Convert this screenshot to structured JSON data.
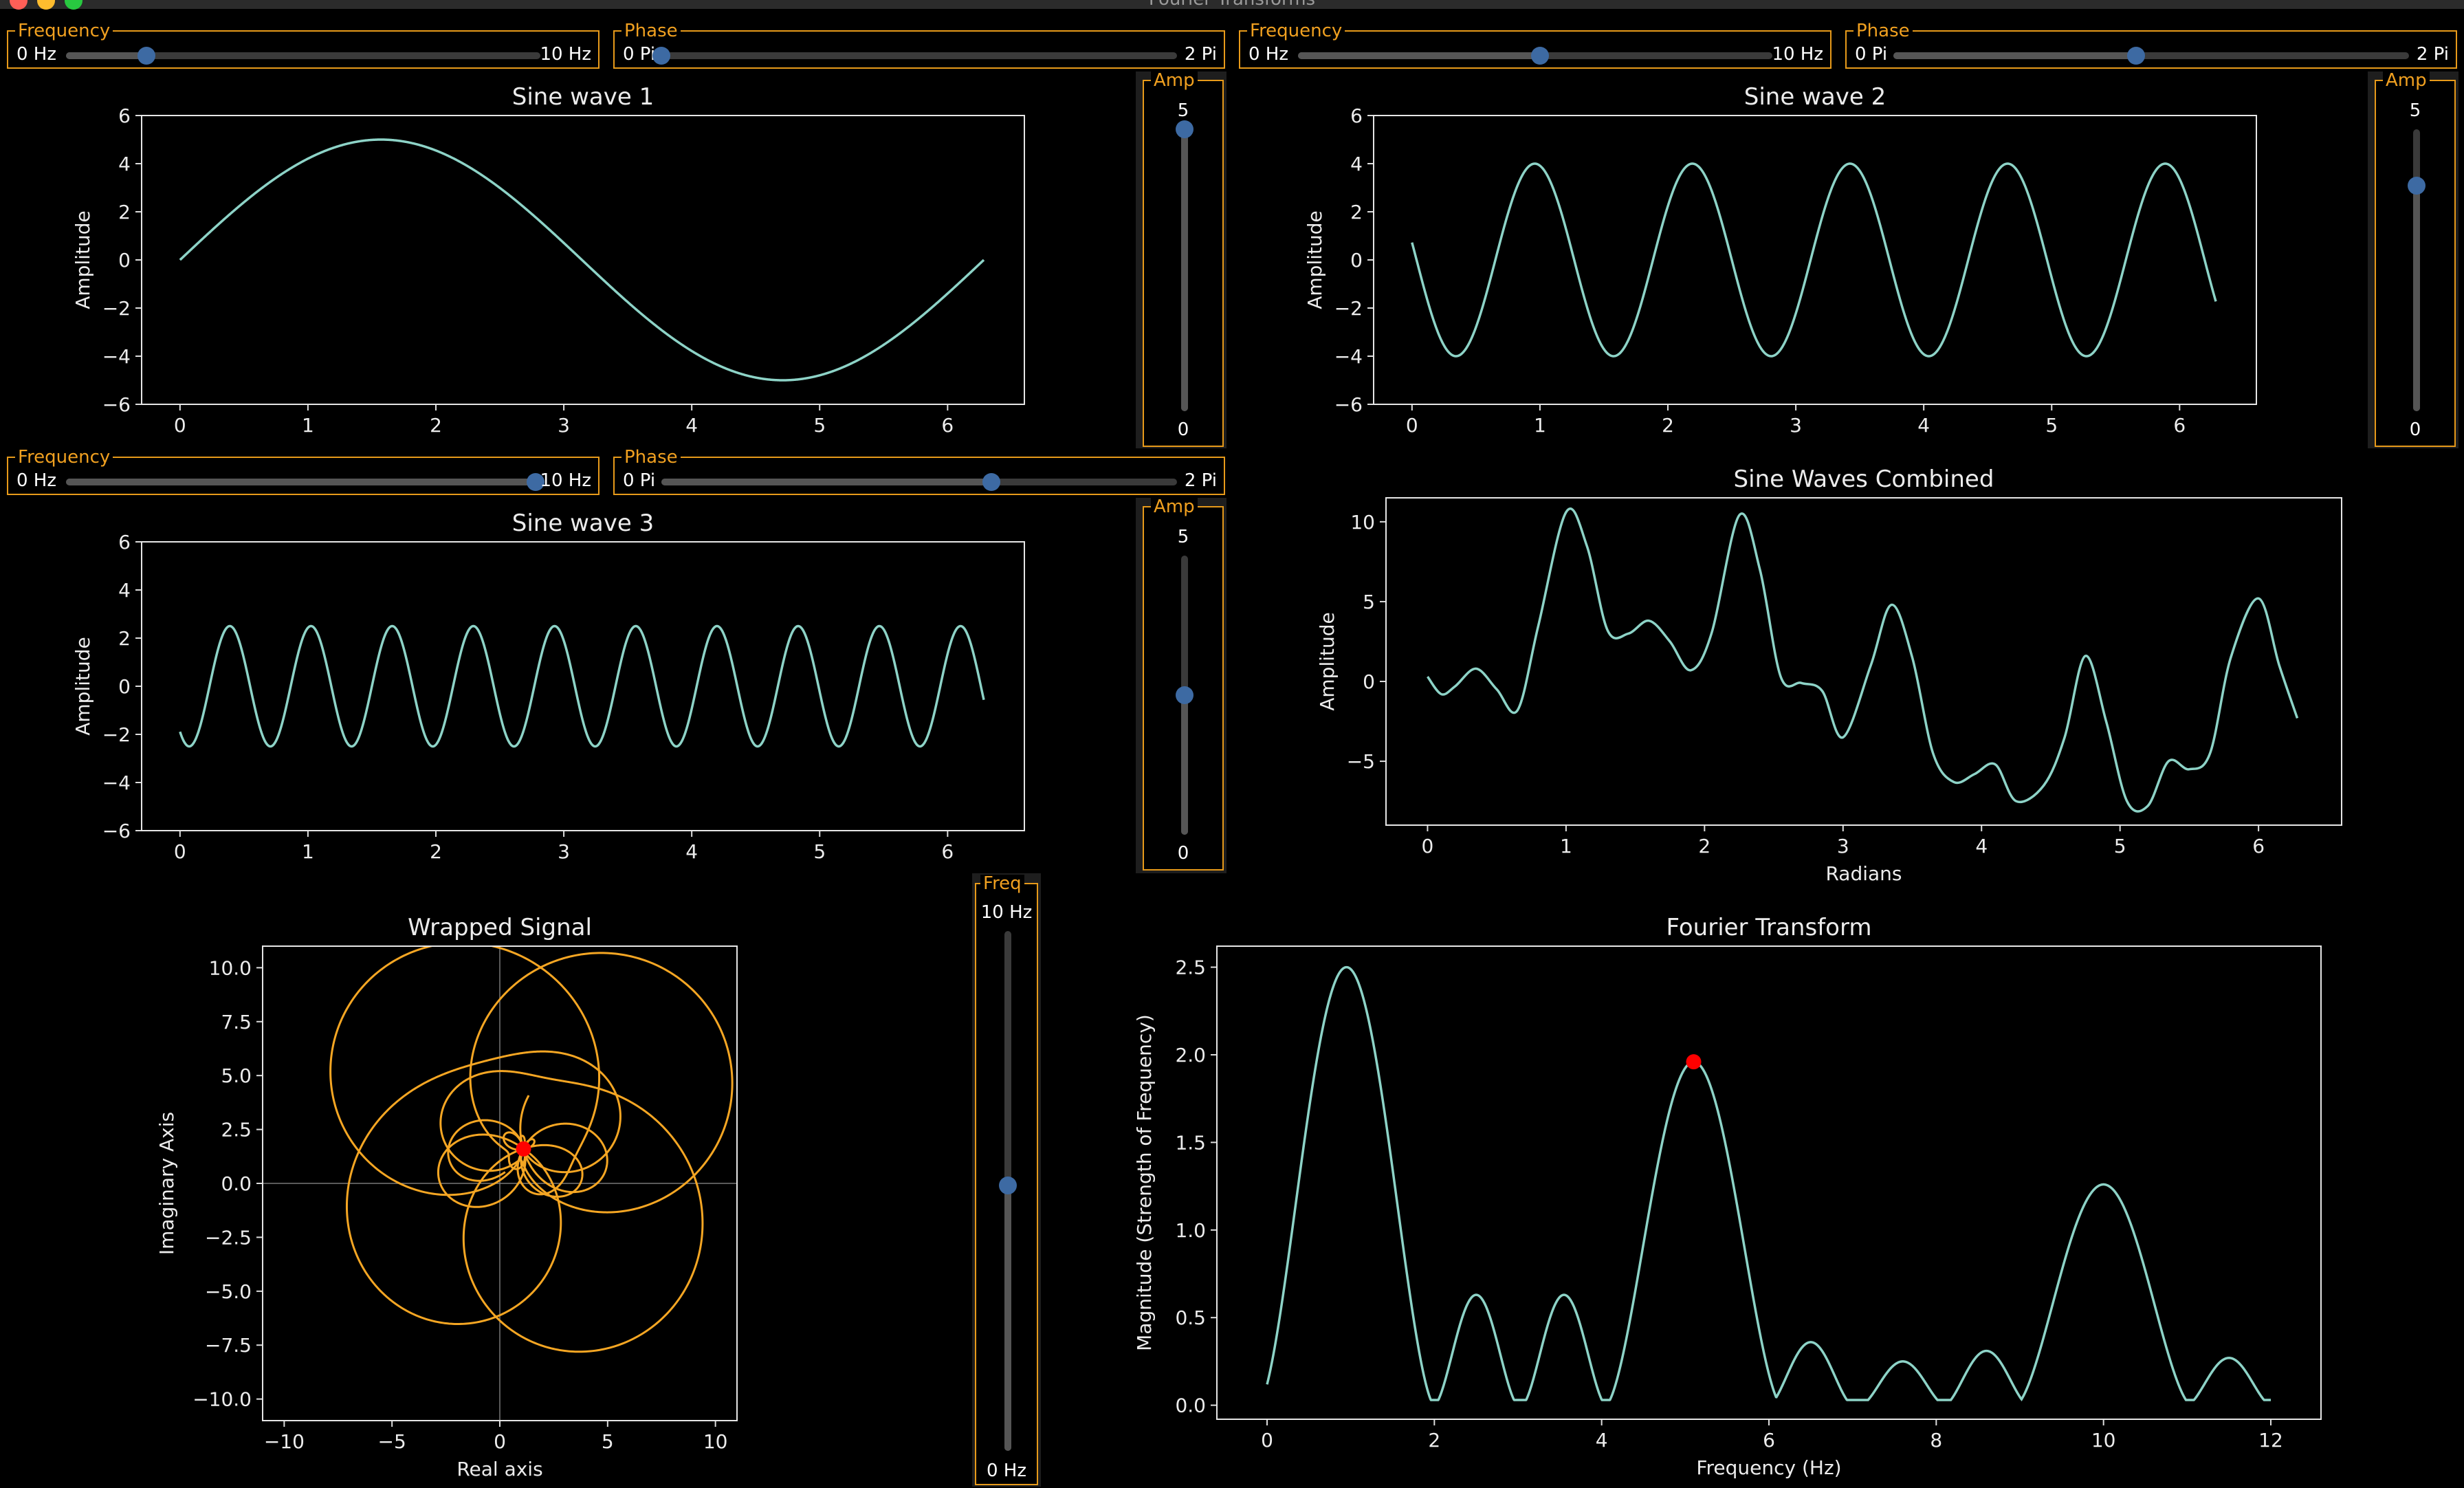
{
  "window": {
    "title": "Fourier Transforms",
    "accent": "#e79a1a",
    "knob_color": "#3d6aa3"
  },
  "controls": {
    "wave1": {
      "freq": {
        "label": "Frequency",
        "min_label": "0 Hz",
        "max_label": "10 Hz",
        "value": 0.17
      },
      "phase": {
        "label": "Phase",
        "min_label": "0 Pi",
        "max_label": "2 Pi",
        "value": 0.0
      },
      "amp": {
        "label": "Amp",
        "max_label": "5",
        "min_label": "0",
        "value": 1.0
      }
    },
    "wave2": {
      "freq": {
        "label": "Frequency",
        "min_label": "0 Hz",
        "max_label": "10 Hz",
        "value": 0.51
      },
      "phase": {
        "label": "Phase",
        "min_label": "0 Pi",
        "max_label": "2 Pi",
        "value": 0.47
      },
      "amp": {
        "label": "Amp",
        "max_label": "5",
        "min_label": "0",
        "value": 0.8
      }
    },
    "wave3": {
      "freq": {
        "label": "Frequency",
        "min_label": "0 Hz",
        "max_label": "10 Hz",
        "value": 0.99
      },
      "phase": {
        "label": "Phase",
        "min_label": "0 Pi",
        "max_label": "2 Pi",
        "value": 0.64
      },
      "amp": {
        "label": "Amp",
        "max_label": "5",
        "min_label": "0",
        "value": 0.5
      }
    },
    "wrap": {
      "label": "Freq",
      "max_label": "10 Hz",
      "min_label": "0 Hz",
      "value": 0.51
    }
  },
  "chart_data": [
    {
      "id": "sine1",
      "type": "line",
      "title": "Sine wave 1",
      "xlabel": "",
      "ylabel": "Amplitude",
      "xlim": [
        -0.3,
        6.6
      ],
      "ylim": [
        -6,
        6
      ],
      "xticks": [
        "0",
        "1",
        "2",
        "3",
        "4",
        "5",
        "6"
      ],
      "yticks": [
        "−6",
        "−4",
        "−2",
        "0",
        "2",
        "4",
        "6"
      ],
      "series": [
        {
          "color": "#8dd3c7",
          "amplitude": 5,
          "frequency": 1,
          "phase": 0,
          "x_range": [
            0,
            6.283
          ]
        }
      ]
    },
    {
      "id": "sine2",
      "type": "line",
      "title": "Sine wave 2",
      "xlabel": "",
      "ylabel": "Amplitude",
      "xlim": [
        -0.3,
        6.6
      ],
      "ylim": [
        -6,
        6
      ],
      "xticks": [
        "0",
        "1",
        "2",
        "3",
        "4",
        "5",
        "6"
      ],
      "yticks": [
        "−6",
        "−4",
        "−2",
        "0",
        "2",
        "4",
        "6"
      ],
      "series": [
        {
          "color": "#8dd3c7",
          "amplitude": 4,
          "frequency": 5.1,
          "phase": 2.96,
          "x_range": [
            0,
            6.283
          ]
        }
      ]
    },
    {
      "id": "sine3",
      "type": "line",
      "title": "Sine wave 3",
      "xlabel": "",
      "ylabel": "Amplitude",
      "xlim": [
        -0.3,
        6.6
      ],
      "ylim": [
        -6,
        6
      ],
      "xticks": [
        "0",
        "1",
        "2",
        "3",
        "4",
        "5",
        "6"
      ],
      "yticks": [
        "−6",
        "−4",
        "−2",
        "0",
        "2",
        "4",
        "6"
      ],
      "series": [
        {
          "color": "#8dd3c7",
          "amplitude": 2.5,
          "frequency": 9.9,
          "phase": 4.0,
          "x_range": [
            0,
            6.283
          ]
        }
      ]
    },
    {
      "id": "combined",
      "type": "line",
      "title": "Sine Waves Combined",
      "xlabel": "Radians",
      "ylabel": "Amplitude",
      "xlim": [
        -0.3,
        6.6
      ],
      "ylim": [
        -9,
        11.5
      ],
      "xticks": [
        "0",
        "1",
        "2",
        "3",
        "4",
        "5",
        "6"
      ],
      "yticks": [
        "−5",
        "0",
        "5",
        "10"
      ],
      "series": [
        {
          "color": "#8dd3c7",
          "x": [
            0,
            0.1,
            0.2,
            0.35,
            0.5,
            0.65,
            0.8,
            1.0,
            1.15,
            1.3,
            1.45,
            1.6,
            1.75,
            1.9,
            2.05,
            2.25,
            2.4,
            2.55,
            2.7,
            2.85,
            3.0,
            3.2,
            3.35,
            3.5,
            3.65,
            3.8,
            3.95,
            4.1,
            4.25,
            4.45,
            4.6,
            4.75,
            4.9,
            5.05,
            5.2,
            5.35,
            5.5,
            5.65,
            5.8,
            6.0,
            6.15,
            6.28
          ],
          "y": [
            0.3,
            -0.8,
            -0.3,
            0.8,
            -0.5,
            -1.8,
            3.5,
            10.6,
            8.5,
            3.2,
            3.0,
            3.8,
            2.5,
            0.7,
            3.0,
            10.4,
            7.0,
            0.3,
            -0.1,
            -0.6,
            -3.5,
            1.0,
            4.8,
            1.5,
            -4.5,
            -6.3,
            -5.8,
            -5.2,
            -7.5,
            -6.5,
            -3.5,
            1.6,
            -2.5,
            -7.5,
            -7.8,
            -5.0,
            -5.5,
            -4.5,
            1.5,
            5.2,
            1.0,
            -2.3
          ]
        }
      ]
    },
    {
      "id": "wrapped",
      "type": "line",
      "title": "Wrapped Signal",
      "xlabel": "Real axis",
      "ylabel": "Imaginary Axis",
      "xlim": [
        -11,
        11
      ],
      "ylim": [
        -11,
        11
      ],
      "xticks": [
        "−10",
        "−5",
        "0",
        "5",
        "10"
      ],
      "yticks": [
        "−10.0",
        "−7.5",
        "−5.0",
        "−2.5",
        "0.0",
        "2.5",
        "5.0",
        "7.5",
        "10.0"
      ],
      "marker": {
        "x": 1.1,
        "y": 1.6,
        "color": "#ff0000"
      },
      "series": [
        {
          "color": "#f5a623"
        }
      ]
    },
    {
      "id": "fourier",
      "type": "line",
      "title": "Fourier Transform",
      "xlabel": "Frequency (Hz)",
      "ylabel": "Magnitude (Strength of Frequency)",
      "xlim": [
        -0.6,
        12.6
      ],
      "ylim": [
        -0.08,
        2.62
      ],
      "xticks": [
        "0",
        "2",
        "4",
        "6",
        "8",
        "10",
        "12"
      ],
      "yticks": [
        "0.0",
        "0.5",
        "1.0",
        "1.5",
        "2.0",
        "2.5"
      ],
      "marker": {
        "x": 5.1,
        "y": 1.96,
        "color": "#ff0000"
      },
      "series": [
        {
          "color": "#8dd3c7",
          "peaks": [
            [
              0.95,
              2.5,
              1.05
            ],
            [
              2.5,
              0.63,
              0.5
            ],
            [
              3.55,
              0.63,
              0.5
            ],
            [
              5.1,
              1.96,
              1.05
            ],
            [
              6.5,
              0.36,
              0.5
            ],
            [
              7.6,
              0.25,
              0.5
            ],
            [
              8.6,
              0.31,
              0.5
            ],
            [
              10.0,
              1.26,
              1.05
            ],
            [
              11.5,
              0.27,
              0.5
            ]
          ]
        }
      ]
    }
  ]
}
